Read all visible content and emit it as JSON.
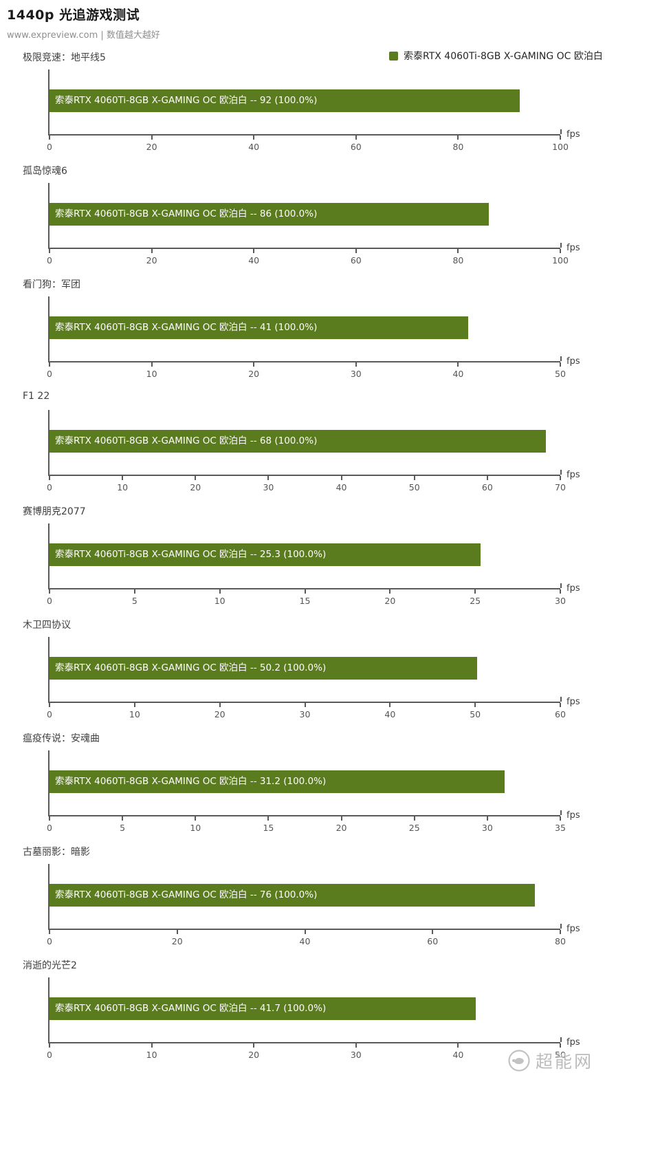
{
  "header": {
    "title": "1440p 光追游戏测试",
    "subtitle": "www.expreview.com | 数值越大越好"
  },
  "legend": {
    "label": "索泰RTX 4060Ti-8GB X-GAMING OC 欧泊白",
    "color": "#5b7b1f"
  },
  "watermark": {
    "text": "超能网"
  },
  "chart_data": [
    {
      "type": "bar",
      "title": "极限竞速：地平线5",
      "series": "索泰RTX 4060Ti-8GB X-GAMING OC 欧泊白",
      "value": 92,
      "percent": "100.0%",
      "bar_label": "索泰RTX 4060Ti-8GB X-GAMING OC 欧泊白  --  92 (100.0%)",
      "xlim": [
        0,
        100
      ],
      "ticks": [
        0,
        20,
        40,
        60,
        80,
        100
      ],
      "unit": "fps"
    },
    {
      "type": "bar",
      "title": "孤岛惊魂6",
      "series": "索泰RTX 4060Ti-8GB X-GAMING OC 欧泊白",
      "value": 86,
      "percent": "100.0%",
      "bar_label": "索泰RTX 4060Ti-8GB X-GAMING OC 欧泊白  --  86 (100.0%)",
      "xlim": [
        0,
        100
      ],
      "ticks": [
        0,
        20,
        40,
        60,
        80,
        100
      ],
      "unit": "fps"
    },
    {
      "type": "bar",
      "title": "看门狗：军团",
      "series": "索泰RTX 4060Ti-8GB X-GAMING OC 欧泊白",
      "value": 41,
      "percent": "100.0%",
      "bar_label": "索泰RTX 4060Ti-8GB X-GAMING OC 欧泊白  --  41 (100.0%)",
      "xlim": [
        0,
        50
      ],
      "ticks": [
        0,
        10,
        20,
        30,
        40,
        50
      ],
      "unit": "fps"
    },
    {
      "type": "bar",
      "title": "F1 22",
      "series": "索泰RTX 4060Ti-8GB X-GAMING OC 欧泊白",
      "value": 68,
      "percent": "100.0%",
      "bar_label": "索泰RTX 4060Ti-8GB X-GAMING OC 欧泊白  --  68 (100.0%)",
      "xlim": [
        0,
        70
      ],
      "ticks": [
        0,
        10,
        20,
        30,
        40,
        50,
        60,
        70
      ],
      "unit": "fps"
    },
    {
      "type": "bar",
      "title": "赛博朋克2077",
      "series": "索泰RTX 4060Ti-8GB X-GAMING OC 欧泊白",
      "value": 25.3,
      "percent": "100.0%",
      "bar_label": "索泰RTX 4060Ti-8GB X-GAMING OC 欧泊白  --  25.3 (100.0%)",
      "xlim": [
        0,
        30
      ],
      "ticks": [
        0,
        5,
        10,
        15,
        20,
        25,
        30
      ],
      "unit": "fps"
    },
    {
      "type": "bar",
      "title": "木卫四协议",
      "series": "索泰RTX 4060Ti-8GB X-GAMING OC 欧泊白",
      "value": 50.2,
      "percent": "100.0%",
      "bar_label": "索泰RTX 4060Ti-8GB X-GAMING OC 欧泊白  --  50.2 (100.0%)",
      "xlim": [
        0,
        60
      ],
      "ticks": [
        0,
        10,
        20,
        30,
        40,
        50,
        60
      ],
      "unit": "fps"
    },
    {
      "type": "bar",
      "title": "瘟疫传说：安魂曲",
      "series": "索泰RTX 4060Ti-8GB X-GAMING OC 欧泊白",
      "value": 31.2,
      "percent": "100.0%",
      "bar_label": "索泰RTX 4060Ti-8GB X-GAMING OC 欧泊白  --  31.2 (100.0%)",
      "xlim": [
        0,
        35
      ],
      "ticks": [
        0,
        5,
        10,
        15,
        20,
        25,
        30,
        35
      ],
      "unit": "fps"
    },
    {
      "type": "bar",
      "title": "古墓丽影：暗影",
      "series": "索泰RTX 4060Ti-8GB X-GAMING OC 欧泊白",
      "value": 76,
      "percent": "100.0%",
      "bar_label": "索泰RTX 4060Ti-8GB X-GAMING OC 欧泊白  --  76 (100.0%)",
      "xlim": [
        0,
        80
      ],
      "ticks": [
        0,
        20,
        40,
        60,
        80
      ],
      "unit": "fps"
    },
    {
      "type": "bar",
      "title": "消逝的光芒2",
      "series": "索泰RTX 4060Ti-8GB X-GAMING OC 欧泊白",
      "value": 41.7,
      "percent": "100.0%",
      "bar_label": "索泰RTX 4060Ti-8GB X-GAMING OC 欧泊白  --  41.7 (100.0%)",
      "xlim": [
        0,
        50
      ],
      "ticks": [
        0,
        10,
        20,
        30,
        40,
        50
      ],
      "unit": "fps"
    }
  ]
}
